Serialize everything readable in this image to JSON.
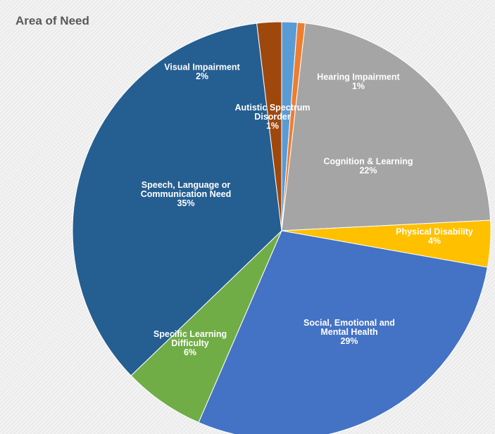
{
  "chart_data": {
    "type": "pie",
    "title": "Area of Need",
    "slices": [
      {
        "label": [
          "Autistic Spectrum",
          "Disorder"
        ],
        "pct_text": "1%",
        "value": 1.2,
        "color": "#5b9bd5"
      },
      {
        "label": [
          "Hearing Impairment"
        ],
        "pct_text": "1%",
        "value": 0.6,
        "color": "#ed7d31"
      },
      {
        "label": [
          "Cognition & Learning"
        ],
        "pct_text": "22%",
        "value": 22.4,
        "color": "#a5a5a5"
      },
      {
        "label": [
          "Physical Disability"
        ],
        "pct_text": "4%",
        "value": 3.6,
        "color": "#ffc000"
      },
      {
        "label": [
          "Social, Emotional and",
          "Mental Health"
        ],
        "pct_text": "29%",
        "value": 28.7,
        "color": "#4472c4"
      },
      {
        "label": [
          "Specific Learning",
          "Difficulty"
        ],
        "pct_text": "6%",
        "value": 6.3,
        "color": "#70ad47"
      },
      {
        "label": [
          "Speech, Language or",
          "Communication Need"
        ],
        "pct_text": "35%",
        "value": 35.3,
        "color": "#255e91"
      },
      {
        "label": [
          "Visual Impairment"
        ],
        "pct_text": "2%",
        "value": 1.9,
        "color": "#9e480e"
      }
    ]
  }
}
